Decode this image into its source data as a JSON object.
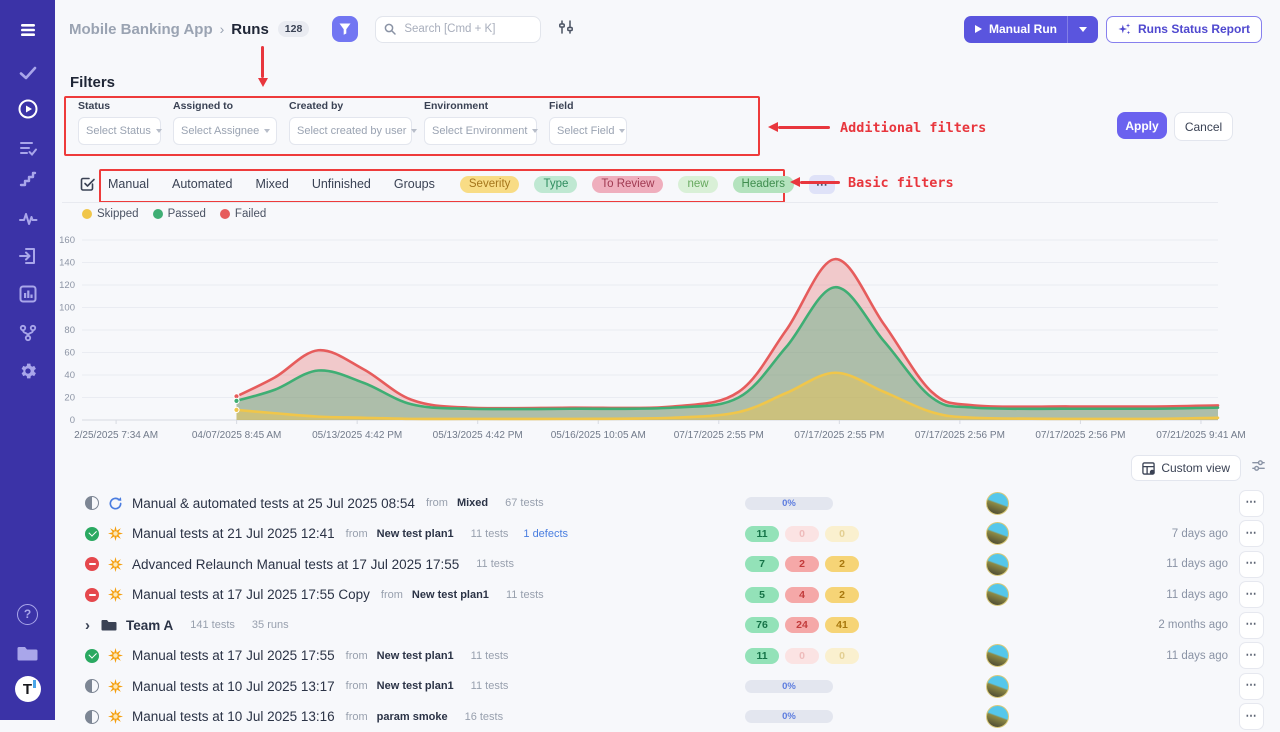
{
  "app": {
    "sidebar_color": "#3b33a7",
    "accent": "#6159e2",
    "annotation_color": "#e8363d"
  },
  "sidebar": {
    "icons": [
      "menu",
      "check",
      "play-circle",
      "list-check",
      "steps",
      "pulse",
      "import",
      "bar-chart",
      "branch",
      "settings",
      "help",
      "projects",
      "logo"
    ],
    "active": "play-circle",
    "help_glyph": "?",
    "logo_glyph": "T"
  },
  "header": {
    "project": "Mobile Banking App",
    "separator": "›",
    "page": "Runs",
    "count": "128",
    "search_placeholder": "Search [Cmd + K]",
    "manual_run_label": "Manual Run",
    "report_label": "Runs Status Report"
  },
  "filters_panel": {
    "title": "Filters",
    "apply_label": "Apply",
    "cancel_label": "Cancel",
    "fields": [
      {
        "label": "Status",
        "placeholder": "Select Status"
      },
      {
        "label": "Assigned to",
        "placeholder": "Select Assignee"
      },
      {
        "label": "Created by",
        "placeholder": "Select created by user"
      },
      {
        "label": "Environment",
        "placeholder": "Select Environment"
      },
      {
        "label": "Field",
        "placeholder": "Select Field"
      }
    ]
  },
  "annotations": {
    "additional": "Additional filters",
    "basic": "Basic filters"
  },
  "basic_filters": {
    "links": [
      "Manual",
      "Automated",
      "Mixed",
      "Unfinished",
      "Groups"
    ],
    "chips": [
      {
        "name": "severity",
        "label": "Severity",
        "bg": "#f8dc85",
        "fg": "#a5761c"
      },
      {
        "name": "type",
        "label": "Type",
        "bg": "#bfe8d2",
        "fg": "#2e8d5f"
      },
      {
        "name": "to-review",
        "label": "To Review",
        "bg": "#efaebd",
        "fg": "#a03a52"
      },
      {
        "name": "new",
        "label": "new",
        "bg": "#d9f0d7",
        "fg": "#67a95f"
      },
      {
        "name": "headers",
        "label": "Headers",
        "bg": "#b4e3be",
        "fg": "#3f8d4e"
      },
      {
        "name": "more",
        "label": "⋯",
        "bg": "#dfe2f8",
        "fg": "#4a4f68"
      }
    ]
  },
  "chart_data": {
    "type": "area",
    "title": "",
    "grid": true,
    "legend_position": "top-left",
    "ylim": [
      0,
      160
    ],
    "yticks": [
      0,
      20,
      40,
      60,
      80,
      100,
      120,
      140,
      160
    ],
    "x_labels": [
      "2/25/2025 7:34 AM",
      "04/07/2025 8:45 AM",
      "05/13/2025 4:42 PM",
      "05/13/2025 4:42 PM",
      "05/16/2025 10:05 AM",
      "07/17/2025 2:55 PM",
      "07/17/2025 2:55 PM",
      "07/17/2025 2:56 PM",
      "07/17/2025 2:56 PM",
      "07/21/2025 9:41 AM"
    ],
    "series": [
      {
        "name": "Skipped",
        "color": "#f0c64a",
        "fill_opacity": 0.45,
        "points": [
          [
            0.136,
            9
          ],
          [
            0.17,
            6
          ],
          [
            0.208,
            3
          ],
          [
            0.248,
            2
          ],
          [
            0.29,
            1
          ],
          [
            0.34,
            1
          ],
          [
            0.43,
            1
          ],
          [
            0.52,
            2
          ],
          [
            0.578,
            7
          ],
          [
            0.62,
            24
          ],
          [
            0.663,
            42
          ],
          [
            0.706,
            25
          ],
          [
            0.748,
            7
          ],
          [
            0.785,
            2
          ],
          [
            0.87,
            1
          ],
          [
            0.94,
            1
          ],
          [
            1,
            2
          ]
        ]
      },
      {
        "name": "Passed",
        "color": "#3fae74",
        "fill_opacity": 0.38,
        "points": [
          [
            0.136,
            17
          ],
          [
            0.17,
            27
          ],
          [
            0.208,
            44
          ],
          [
            0.248,
            33
          ],
          [
            0.29,
            14
          ],
          [
            0.34,
            10
          ],
          [
            0.43,
            10
          ],
          [
            0.52,
            11
          ],
          [
            0.578,
            20
          ],
          [
            0.62,
            65
          ],
          [
            0.663,
            118
          ],
          [
            0.706,
            70
          ],
          [
            0.748,
            20
          ],
          [
            0.785,
            11
          ],
          [
            0.87,
            10
          ],
          [
            0.94,
            10
          ],
          [
            1,
            11
          ]
        ]
      },
      {
        "name": "Failed",
        "color": "#e65c5c",
        "fill_opacity": 0.3,
        "points": [
          [
            0.136,
            21
          ],
          [
            0.17,
            38
          ],
          [
            0.208,
            62
          ],
          [
            0.248,
            45
          ],
          [
            0.29,
            18
          ],
          [
            0.34,
            11
          ],
          [
            0.43,
            11
          ],
          [
            0.52,
            12
          ],
          [
            0.578,
            25
          ],
          [
            0.62,
            80
          ],
          [
            0.663,
            143
          ],
          [
            0.706,
            85
          ],
          [
            0.748,
            25
          ],
          [
            0.785,
            13
          ],
          [
            0.87,
            12
          ],
          [
            0.94,
            12
          ],
          [
            1,
            13
          ]
        ]
      }
    ]
  },
  "list": {
    "custom_view_label": "Custom view",
    "more_icon": "⋯",
    "group_chevron": "›",
    "badge_colors": {
      "passed_bg": "#93e2b8",
      "passed_fg": "#157347",
      "failed_bg": "#f5a8a8",
      "failed_fg": "#c23b3b",
      "skipped_bg": "#f6d476",
      "skipped_fg": "#a8780e",
      "failed_faded_bg": "#fbe3e3",
      "failed_faded_fg": "#eebbbb",
      "skipped_faded_bg": "#faf0cf",
      "skipped_faded_fg": "#e3cf92"
    },
    "rows": [
      {
        "kind": "run",
        "status": "in-progress",
        "type_icon": "sync",
        "title": "Manual & automated tests at 25 Jul 2025 08:54",
        "from_label": "from",
        "plan": "Mixed",
        "tests": "67 tests",
        "defects": "",
        "metric": {
          "kind": "progress",
          "label": "0%"
        },
        "has_avatar": true,
        "ago": ""
      },
      {
        "kind": "run",
        "status": "passed",
        "type_icon": "burst",
        "title": "Manual tests at 21 Jul 2025 12:41",
        "from_label": "from",
        "plan": "New test plan1",
        "tests": "11 tests",
        "defects": "1 defects",
        "metric": {
          "kind": "badges",
          "passed": "11",
          "failed": "0",
          "skipped": "0"
        },
        "has_avatar": true,
        "ago": "7 days ago"
      },
      {
        "kind": "run",
        "status": "failed",
        "type_icon": "burst",
        "title": "Advanced Relaunch Manual tests at 17 Jul 2025 17:55",
        "from_label": "",
        "plan": "",
        "tests": "11 tests",
        "defects": "",
        "metric": {
          "kind": "badges",
          "passed": "7",
          "failed": "2",
          "skipped": "2"
        },
        "has_avatar": true,
        "ago": "11 days ago"
      },
      {
        "kind": "run",
        "status": "failed",
        "type_icon": "burst",
        "title": "Manual tests at 17 Jul 2025 17:55 Copy",
        "from_label": "from",
        "plan": "New test plan1",
        "tests": "11 tests",
        "defects": "",
        "metric": {
          "kind": "badges",
          "passed": "5",
          "failed": "4",
          "skipped": "2"
        },
        "has_avatar": true,
        "ago": "11 days ago"
      },
      {
        "kind": "group",
        "status": "",
        "type_icon": "folder",
        "title": "Team A",
        "from_label": "",
        "plan": "",
        "tests": "141 tests",
        "runs": "35 runs",
        "defects": "",
        "metric": {
          "kind": "badges",
          "passed": "76",
          "failed": "24",
          "skipped": "41"
        },
        "has_avatar": false,
        "ago": "2 months ago"
      },
      {
        "kind": "run",
        "status": "passed",
        "type_icon": "burst",
        "title": "Manual tests at 17 Jul 2025 17:55",
        "from_label": "from",
        "plan": "New test plan1",
        "tests": "11 tests",
        "defects": "",
        "metric": {
          "kind": "badges",
          "passed": "11",
          "failed": "0",
          "skipped": "0"
        },
        "has_avatar": true,
        "ago": "11 days ago"
      },
      {
        "kind": "run",
        "status": "in-progress",
        "type_icon": "burst",
        "title": "Manual tests at 10 Jul 2025 13:17",
        "from_label": "from",
        "plan": "New test plan1",
        "tests": "11 tests",
        "defects": "",
        "metric": {
          "kind": "progress",
          "label": "0%"
        },
        "has_avatar": true,
        "ago": ""
      },
      {
        "kind": "run",
        "status": "in-progress",
        "type_icon": "burst",
        "title": "Manual tests at 10 Jul 2025 13:16",
        "from_label": "from",
        "plan": "param smoke",
        "tests": "16 tests",
        "defects": "",
        "metric": {
          "kind": "progress",
          "label": "0%"
        },
        "has_avatar": true,
        "ago": ""
      }
    ]
  }
}
